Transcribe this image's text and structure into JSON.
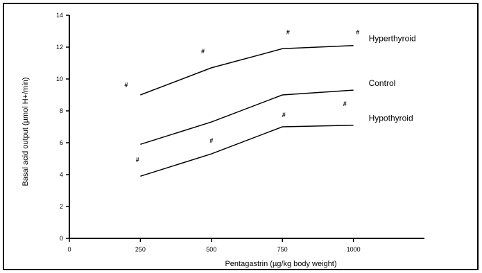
{
  "chart_data": {
    "type": "line",
    "title": "",
    "xlabel": "Pentagastrin (µg/kg body weight)",
    "ylabel": "Basal acid output (µmol H+/min)",
    "x": [
      0,
      250,
      500,
      750,
      1000
    ],
    "x_tick_labels": [
      "0",
      "250",
      "500",
      "750",
      "1000"
    ],
    "xlim": [
      0,
      1250
    ],
    "ylim": [
      0,
      14
    ],
    "y_ticks": [
      0,
      2,
      4,
      6,
      8,
      10,
      12,
      14
    ],
    "grid": false,
    "series": [
      {
        "name": "Hyperthyroid",
        "x": [
          250,
          500,
          750,
          1000
        ],
        "values": [
          9.0,
          10.7,
          11.9,
          12.1
        ],
        "markers": [
          {
            "x": 200,
            "y": 9.5,
            "label": "#"
          },
          {
            "x": 470,
            "y": 11.6,
            "label": "#"
          },
          {
            "x": 770,
            "y": 12.8,
            "label": "#"
          },
          {
            "x": 1015,
            "y": 12.8,
            "label": "#"
          }
        ]
      },
      {
        "name": "Control",
        "x": [
          250,
          500,
          750,
          1000
        ],
        "values": [
          5.9,
          7.3,
          9.0,
          9.3
        ],
        "markers": [
          {
            "x": 240,
            "y": 4.8,
            "label": "#"
          },
          {
            "x": 500,
            "y": 6.0,
            "label": "#"
          },
          {
            "x": 755,
            "y": 7.6,
            "label": "#"
          },
          {
            "x": 970,
            "y": 8.3,
            "label": "#"
          }
        ]
      },
      {
        "name": "Hypothyroid",
        "x": [
          250,
          500,
          750,
          1000
        ],
        "values": [
          3.9,
          5.3,
          7.0,
          7.1
        ],
        "markers": []
      }
    ]
  }
}
